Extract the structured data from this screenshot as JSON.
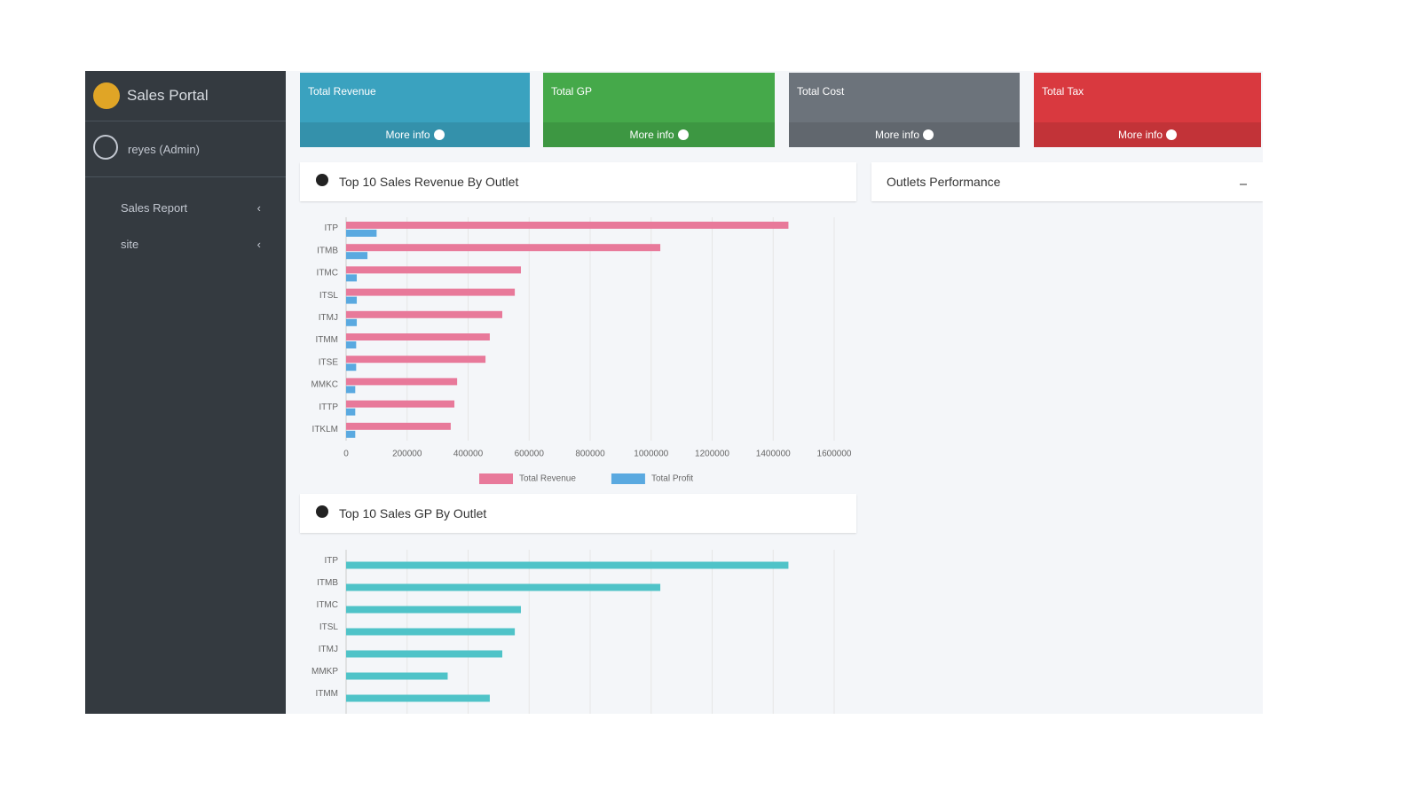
{
  "sidebar": {
    "brand": "Sales Portal",
    "user": "reyes (Admin)",
    "menu": [
      "Sales Report",
      "site"
    ]
  },
  "info_boxes": [
    {
      "title": "Total Revenue",
      "link": "More info",
      "color": "#3aa2bf"
    },
    {
      "title": "Total GP",
      "link": "More info",
      "color": "#45a94a"
    },
    {
      "title": "Total Cost",
      "link": "More info",
      "color": "#6c737b"
    },
    {
      "title": "Total Tax",
      "link": "More info",
      "color": "#d9393f"
    }
  ],
  "outlets_panel": {
    "title": "Outlets Performance"
  },
  "chart_data": [
    {
      "type": "bar",
      "orientation": "horizontal",
      "title": "Top 10 Sales Revenue By Outlet",
      "categories": [
        "ITP",
        "ITMB",
        "ITMC",
        "ITSL",
        "ITMJ",
        "ITMM",
        "ITSE",
        "MMKC",
        "ITTP",
        "ITKLM"
      ],
      "series": [
        {
          "name": "Total Revenue",
          "color": "#e8799a",
          "values": [
            1450000,
            1030000,
            573000,
            553000,
            512000,
            471000,
            457000,
            364000,
            355000,
            343000
          ]
        },
        {
          "name": "Total Profit",
          "color": "#5aa9e0",
          "values": [
            100000,
            70000,
            35000,
            35000,
            35000,
            33000,
            33000,
            30000,
            30000,
            30000
          ]
        }
      ],
      "xlim": [
        0,
        1600000
      ],
      "xticks": [
        0,
        200000,
        400000,
        600000,
        800000,
        1000000,
        1200000,
        1400000,
        1600000
      ],
      "grid": true
    },
    {
      "type": "bar",
      "orientation": "horizontal",
      "title": "Top 10 Sales GP By Outlet",
      "categories": [
        "ITP",
        "ITMB",
        "ITMC",
        "ITSL",
        "ITMJ",
        "MMKP",
        "ITMM"
      ],
      "series": [
        {
          "name": "Total GP",
          "color": "#4fc3c8",
          "values": [
            1450000,
            1030000,
            573000,
            553000,
            512000,
            333000,
            471000
          ]
        }
      ],
      "xlim": [
        0,
        1600000
      ],
      "xticks": [
        0,
        200000,
        400000,
        600000,
        800000,
        1000000,
        1200000,
        1400000,
        1600000
      ],
      "grid": true
    }
  ]
}
